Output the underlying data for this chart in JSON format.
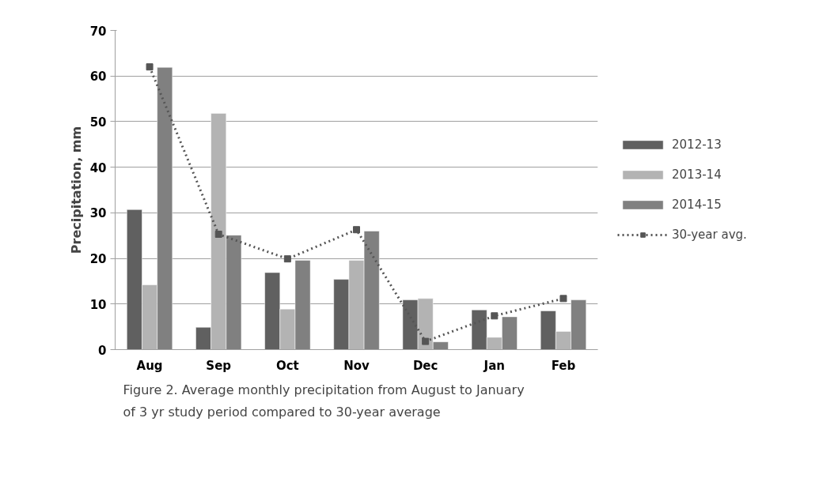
{
  "chart_data": {
    "type": "bar",
    "ylabel": "Precipitation, mm",
    "categories": [
      "Aug",
      "Sep",
      "Oct",
      "Nov",
      "Dec",
      "Jan",
      "Feb"
    ],
    "series": [
      {
        "name": "2012-13",
        "color": "#606060",
        "values": [
          30.7,
          4.9,
          16.9,
          15.4,
          10.9,
          8.7,
          8.5
        ]
      },
      {
        "name": "2013-14",
        "color": "#b3b3b3",
        "values": [
          14.2,
          51.8,
          8.9,
          19.6,
          11.2,
          2.7,
          4.0
        ]
      },
      {
        "name": "2014-15",
        "color": "#808080",
        "values": [
          61.9,
          25.1,
          19.6,
          26.0,
          1.7,
          7.2,
          10.9
        ]
      },
      {
        "name": "30-year avg.",
        "type": "line",
        "color": "#555555",
        "marker": "square",
        "line_style": "dotted",
        "values": [
          62.0,
          25.3,
          19.9,
          26.3,
          1.8,
          7.4,
          11.2
        ]
      }
    ],
    "ylim": [
      0,
      70
    ],
    "yticks": [
      0,
      10,
      20,
      30,
      40,
      50,
      60,
      70
    ],
    "grid": "y",
    "legend": "right",
    "annotations": [
      "Figure 2. Average monthly precipitation from August to January of 3 yr study period compared to 30-year average"
    ]
  }
}
